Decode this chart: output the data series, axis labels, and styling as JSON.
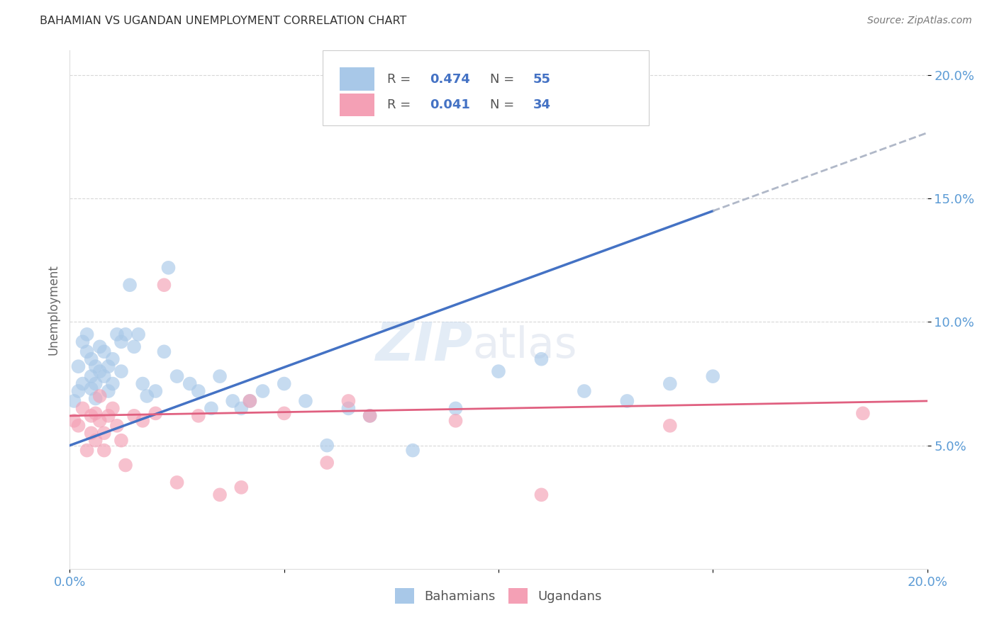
{
  "title": "BAHAMIAN VS UGANDAN UNEMPLOYMENT CORRELATION CHART",
  "source": "Source: ZipAtlas.com",
  "ylabel": "Unemployment",
  "xlim": [
    0.0,
    0.2
  ],
  "ylim": [
    0.0,
    0.21
  ],
  "ytick_positions": [
    0.05,
    0.1,
    0.15,
    0.2
  ],
  "ytick_labels": [
    "5.0%",
    "10.0%",
    "15.0%",
    "20.0%"
  ],
  "xtick_positions": [
    0.0,
    0.05,
    0.1,
    0.15,
    0.2
  ],
  "xtick_labels": [
    "0.0%",
    "",
    "",
    "",
    "20.0%"
  ],
  "watermark_zip": "ZIP",
  "watermark_atlas": "atlas",
  "blue_scatter_color": "#a8c8e8",
  "pink_scatter_color": "#f4a0b5",
  "blue_line_color": "#4472c4",
  "pink_line_color": "#e06080",
  "dashed_line_color": "#b0b8c8",
  "tick_color": "#5b9bd5",
  "grid_color": "#d8d8d8",
  "legend_R1": "R = 0.474",
  "legend_N1": "N = 55",
  "legend_R2": "R = 0.041",
  "legend_N2": "N = 34",
  "legend_val_color": "#4472c4",
  "bahamians_x": [
    0.001,
    0.002,
    0.002,
    0.003,
    0.003,
    0.004,
    0.004,
    0.005,
    0.005,
    0.005,
    0.006,
    0.006,
    0.006,
    0.007,
    0.007,
    0.008,
    0.008,
    0.009,
    0.009,
    0.01,
    0.01,
    0.011,
    0.012,
    0.012,
    0.013,
    0.014,
    0.015,
    0.016,
    0.017,
    0.018,
    0.02,
    0.022,
    0.023,
    0.025,
    0.028,
    0.03,
    0.033,
    0.035,
    0.038,
    0.04,
    0.042,
    0.045,
    0.05,
    0.055,
    0.06,
    0.065,
    0.07,
    0.08,
    0.09,
    0.1,
    0.11,
    0.12,
    0.13,
    0.14,
    0.15
  ],
  "bahamians_y": [
    0.068,
    0.072,
    0.082,
    0.075,
    0.092,
    0.088,
    0.095,
    0.078,
    0.085,
    0.073,
    0.082,
    0.075,
    0.069,
    0.09,
    0.08,
    0.088,
    0.078,
    0.082,
    0.072,
    0.075,
    0.085,
    0.095,
    0.092,
    0.08,
    0.095,
    0.115,
    0.09,
    0.095,
    0.075,
    0.07,
    0.072,
    0.088,
    0.122,
    0.078,
    0.075,
    0.072,
    0.065,
    0.078,
    0.068,
    0.065,
    0.068,
    0.072,
    0.075,
    0.068,
    0.05,
    0.065,
    0.062,
    0.048,
    0.065,
    0.08,
    0.085,
    0.072,
    0.068,
    0.075,
    0.078
  ],
  "ugandans_x": [
    0.001,
    0.002,
    0.003,
    0.004,
    0.005,
    0.005,
    0.006,
    0.006,
    0.007,
    0.007,
    0.008,
    0.008,
    0.009,
    0.01,
    0.011,
    0.012,
    0.013,
    0.015,
    0.017,
    0.02,
    0.022,
    0.025,
    0.03,
    0.035,
    0.04,
    0.042,
    0.05,
    0.06,
    0.065,
    0.07,
    0.09,
    0.11,
    0.14,
    0.185
  ],
  "ugandans_y": [
    0.06,
    0.058,
    0.065,
    0.048,
    0.062,
    0.055,
    0.063,
    0.052,
    0.07,
    0.06,
    0.055,
    0.048,
    0.062,
    0.065,
    0.058,
    0.052,
    0.042,
    0.062,
    0.06,
    0.063,
    0.115,
    0.035,
    0.062,
    0.03,
    0.033,
    0.068,
    0.063,
    0.043,
    0.068,
    0.062,
    0.06,
    0.03,
    0.058,
    0.063
  ]
}
